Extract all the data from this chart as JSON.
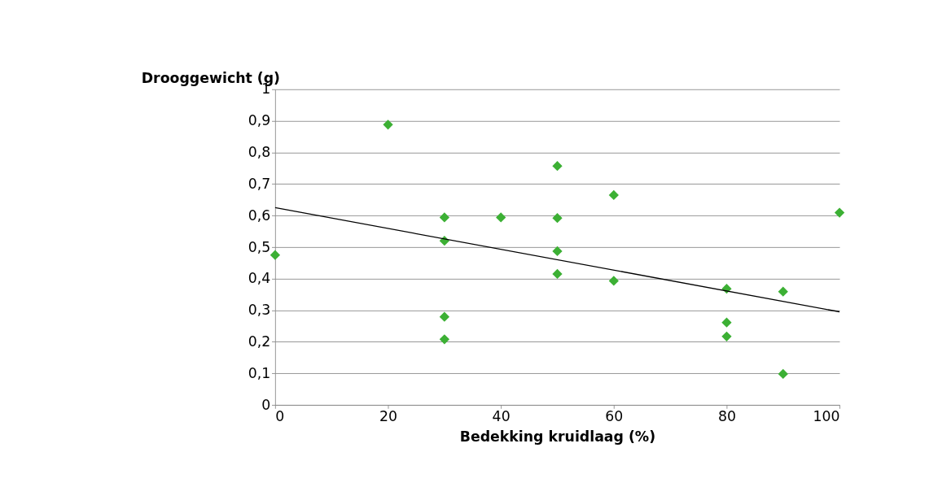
{
  "chart_data": {
    "type": "scatter",
    "xlabel": "Bedekking kruidlaag (%)",
    "ylabel": "Drooggewicht (g)",
    "xlim": [
      0,
      100
    ],
    "xticks": [
      0,
      20,
      40,
      60,
      80,
      100
    ],
    "ylim": [
      0,
      1
    ],
    "yticks": [
      0,
      {
        "value": 0.1,
        "label": "0,1"
      },
      {
        "value": 0.2,
        "label": "0,2"
      },
      {
        "value": 0.3,
        "label": "0,3"
      },
      {
        "value": 0.4,
        "label": "0,4"
      },
      {
        "value": 0.5,
        "label": "0,5"
      },
      {
        "value": 0.6,
        "label": "0,6"
      },
      {
        "value": 0.7,
        "label": "0,7"
      },
      {
        "value": 0.8,
        "label": "0,8"
      },
      {
        "value": 0.9,
        "label": "0,9"
      },
      1
    ],
    "grid": "y",
    "series": [
      {
        "marker": "diamond",
        "color": "#3cb034",
        "x": [
          0,
          20,
          30,
          30,
          30,
          30,
          40,
          50,
          50,
          50,
          50,
          60,
          60,
          80,
          80,
          80,
          90,
          90,
          100
        ],
        "values": [
          0.475,
          0.888,
          0.594,
          0.52,
          0.279,
          0.208,
          0.594,
          0.757,
          0.592,
          0.487,
          0.415,
          0.665,
          0.393,
          0.368,
          0.261,
          0.217,
          0.359,
          0.098,
          0.609
        ]
      },
      {
        "type": "line",
        "color": "#000000",
        "line_style": "solid",
        "marker": "none",
        "x": [
          0,
          100
        ],
        "values": [
          0.625,
          0.295
        ]
      }
    ]
  }
}
